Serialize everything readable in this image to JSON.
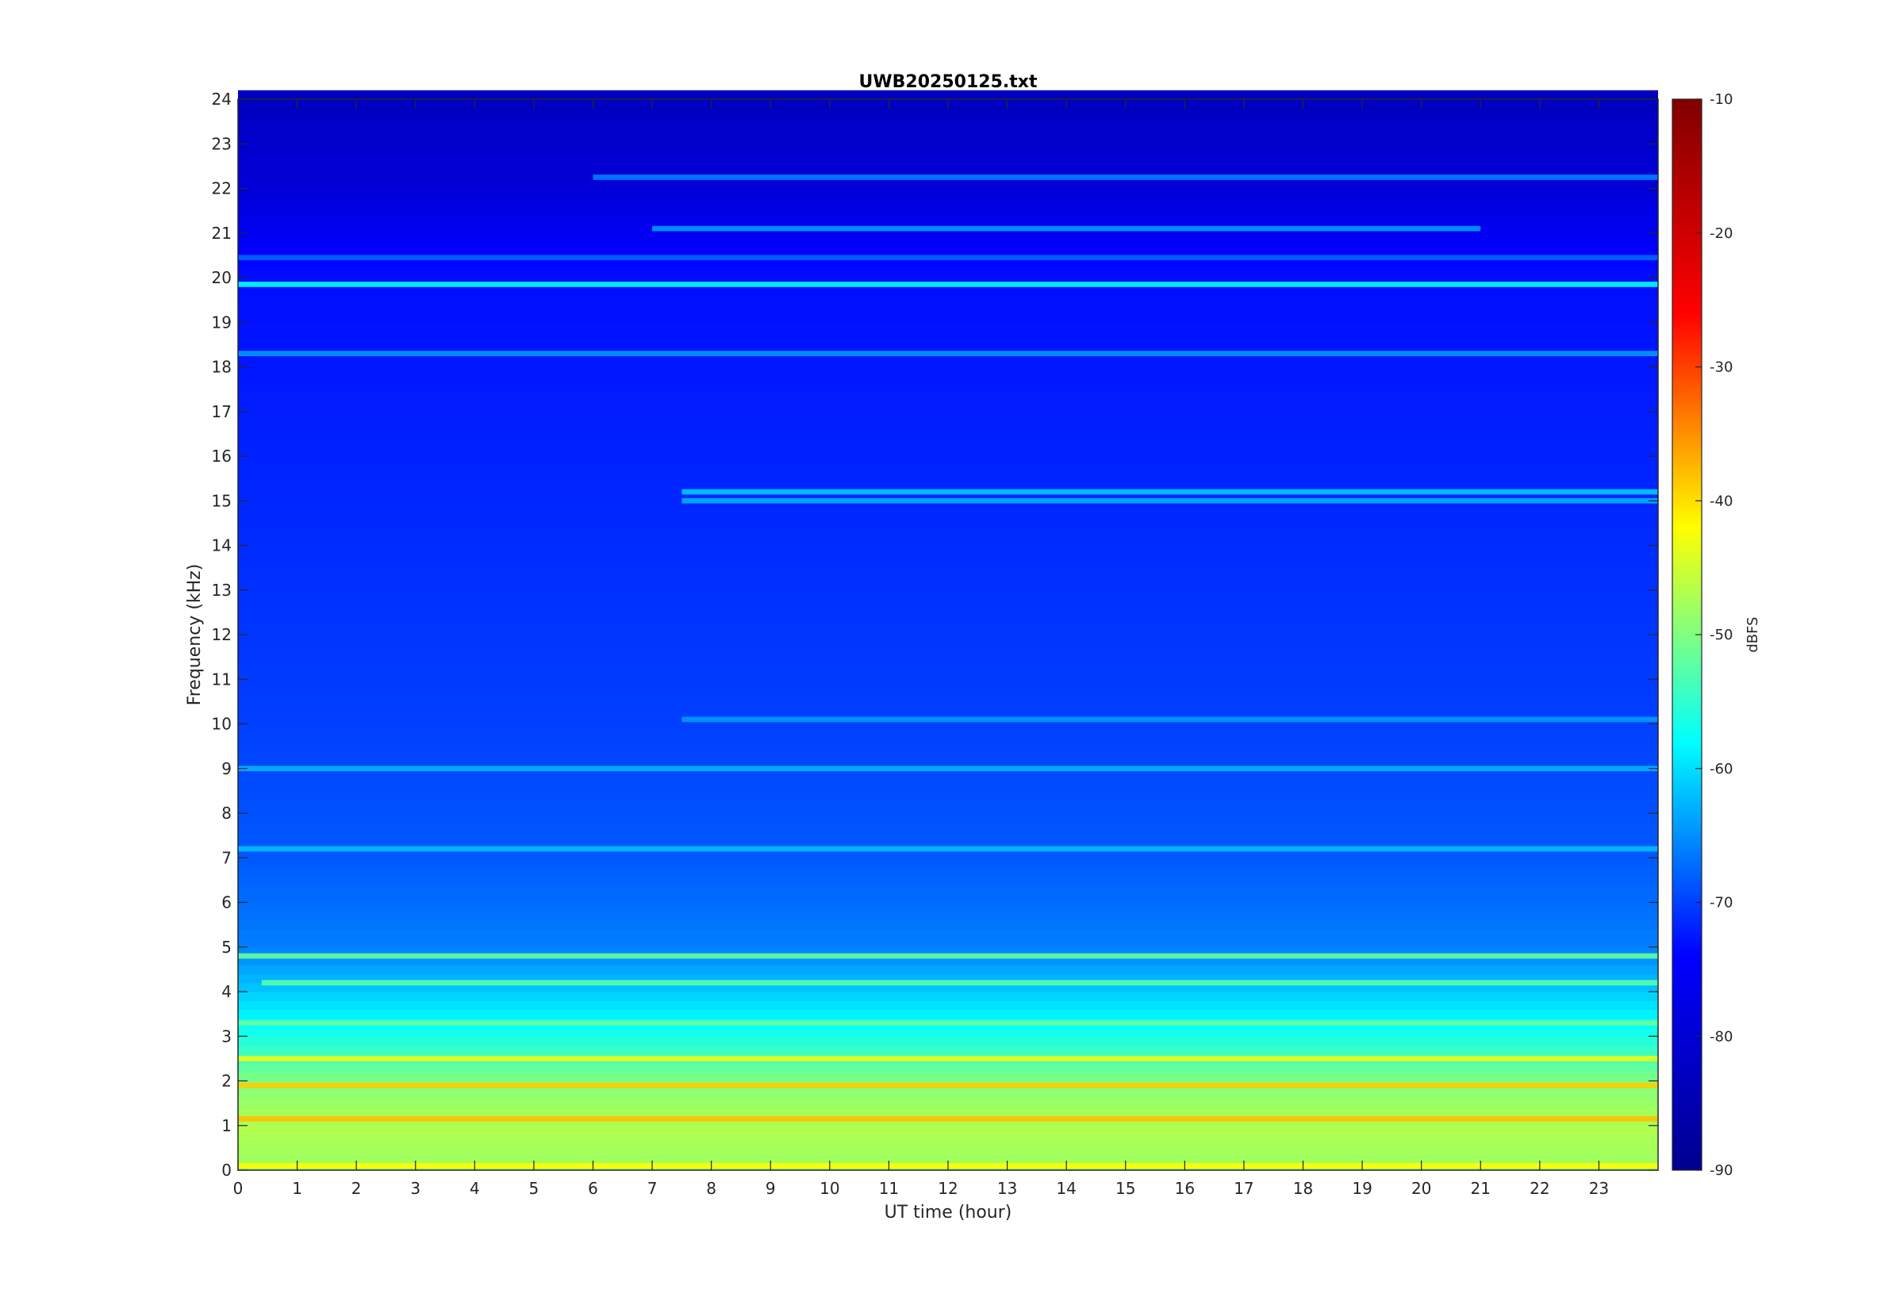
{
  "chart_data": {
    "type": "heatmap",
    "title": "UWB20250125.txt",
    "xlabel": "UT time (hour)",
    "ylabel": "Frequency (kHz)",
    "xlim": [
      0,
      24
    ],
    "ylim": [
      0,
      24
    ],
    "x_ticks": [
      0,
      1,
      2,
      3,
      4,
      5,
      6,
      7,
      8,
      9,
      10,
      11,
      12,
      13,
      14,
      15,
      16,
      17,
      18,
      19,
      20,
      21,
      22,
      23
    ],
    "y_ticks": [
      0,
      1,
      2,
      3,
      4,
      5,
      6,
      7,
      8,
      9,
      10,
      11,
      12,
      13,
      14,
      15,
      16,
      17,
      18,
      19,
      20,
      21,
      22,
      23,
      24
    ],
    "colorbar": {
      "label": "dBFS",
      "range": [
        -90,
        -10
      ],
      "ticks": [
        -10,
        -20,
        -30,
        -40,
        -50,
        -60,
        -70,
        -80,
        -90
      ],
      "colormap": "jet"
    },
    "colormap_stops": [
      "#00008f",
      "#0000ff",
      "#00ffff",
      "#ffff00",
      "#ff0000",
      "#800000"
    ],
    "background_dbfs": [
      {
        "freq_khz": 0,
        "dbfs": -48
      },
      {
        "freq_khz": 1,
        "dbfs": -46
      },
      {
        "freq_khz": 2,
        "dbfs": -50
      },
      {
        "freq_khz": 3,
        "dbfs": -58
      },
      {
        "freq_khz": 4,
        "dbfs": -64
      },
      {
        "freq_khz": 5,
        "dbfs": -70
      },
      {
        "freq_khz": 7,
        "dbfs": -73
      },
      {
        "freq_khz": 10,
        "dbfs": -75
      },
      {
        "freq_khz": 15,
        "dbfs": -77
      },
      {
        "freq_khz": 20,
        "dbfs": -79
      },
      {
        "freq_khz": 22,
        "dbfs": -83
      },
      {
        "freq_khz": 24,
        "dbfs": -85
      }
    ],
    "tonal_lines": [
      {
        "freq_khz": 19.85,
        "t_start": 0,
        "t_end": 24,
        "dbfs": -60
      },
      {
        "freq_khz": 18.3,
        "t_start": 0,
        "t_end": 24,
        "dbfs": -68
      },
      {
        "freq_khz": 22.25,
        "t_start": 6,
        "t_end": 24,
        "dbfs": -70
      },
      {
        "freq_khz": 21.1,
        "t_start": 7,
        "t_end": 21,
        "dbfs": -68
      },
      {
        "freq_khz": 20.45,
        "t_start": 0,
        "t_end": 24,
        "dbfs": -72
      },
      {
        "freq_khz": 15.2,
        "t_start": 7.5,
        "t_end": 24,
        "dbfs": -64
      },
      {
        "freq_khz": 15.0,
        "t_start": 7.5,
        "t_end": 24,
        "dbfs": -66
      },
      {
        "freq_khz": 10.1,
        "t_start": 7.5,
        "t_end": 24,
        "dbfs": -68
      },
      {
        "freq_khz": 9.0,
        "t_start": 0,
        "t_end": 24,
        "dbfs": -66
      },
      {
        "freq_khz": 7.2,
        "t_start": 0,
        "t_end": 24,
        "dbfs": -65
      },
      {
        "freq_khz": 4.8,
        "t_start": 0,
        "t_end": 24,
        "dbfs": -52
      },
      {
        "freq_khz": 4.2,
        "t_start": 0.4,
        "t_end": 24,
        "dbfs": -53
      },
      {
        "freq_khz": 3.3,
        "t_start": 0,
        "t_end": 24,
        "dbfs": -52
      },
      {
        "freq_khz": 2.5,
        "t_start": 0,
        "t_end": 24,
        "dbfs": -42
      },
      {
        "freq_khz": 1.9,
        "t_start": 0,
        "t_end": 24,
        "dbfs": -36
      },
      {
        "freq_khz": 1.15,
        "t_start": 0,
        "t_end": 24,
        "dbfs": -35
      },
      {
        "freq_khz": 0.1,
        "t_start": 0,
        "t_end": 24,
        "dbfs": -40
      }
    ]
  }
}
